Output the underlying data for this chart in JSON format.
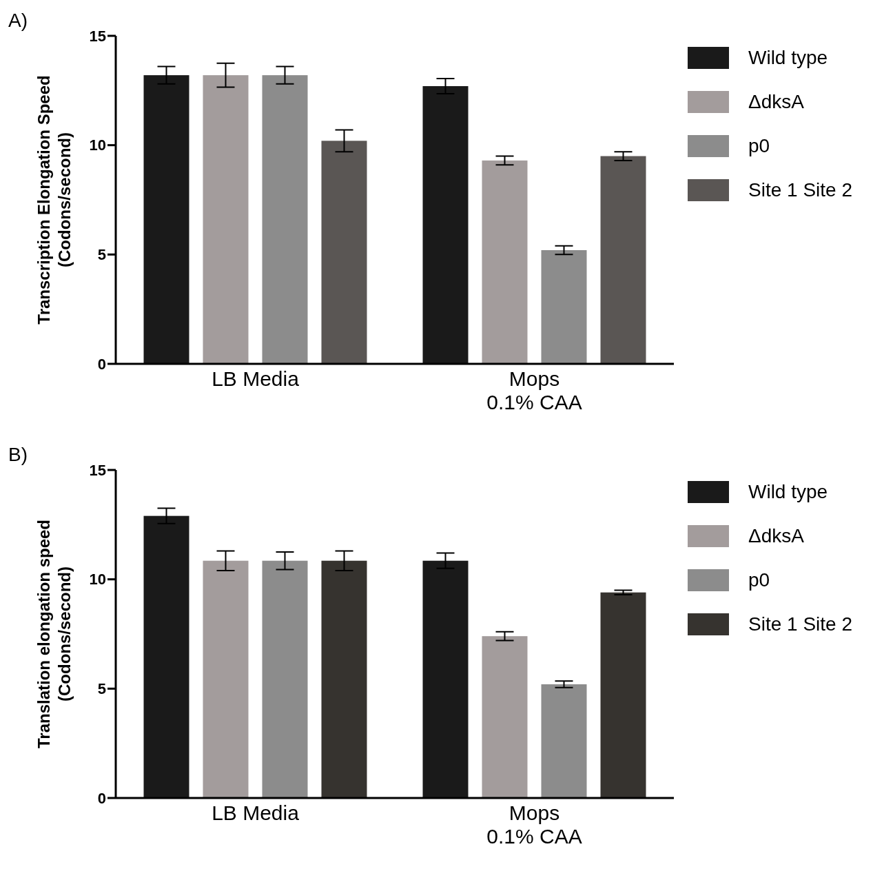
{
  "chart_data": [
    {
      "type": "bar",
      "annotations": [
        "A)"
      ],
      "ylabel": "Transcription Elongation Speed\n(Codons/second)",
      "categories": [
        "LB Media",
        "Mops\n0.1% CAA"
      ],
      "ylim": [
        0,
        15
      ],
      "yticks": [
        0,
        5,
        10,
        15
      ],
      "legend": "right",
      "series": [
        {
          "name": "Wild type",
          "color": "#1a1a1a",
          "values": [
            13.2,
            12.7
          ],
          "errors": [
            0.4,
            0.35
          ]
        },
        {
          "name": "ΔdksA",
          "color": "#a39c9c",
          "values": [
            13.2,
            9.3
          ],
          "errors": [
            0.55,
            0.2
          ]
        },
        {
          "name": "p0",
          "color": "#8c8c8c",
          "values": [
            13.2,
            5.2
          ],
          "errors": [
            0.4,
            0.2
          ]
        },
        {
          "name": "Site 1 Site 2",
          "color": "#5a5654",
          "values": [
            10.2,
            9.5
          ],
          "errors": [
            0.5,
            0.2
          ]
        }
      ]
    },
    {
      "type": "bar",
      "annotations": [
        "B)"
      ],
      "ylabel": "Translation elongation speed\n(Codons/second)",
      "categories": [
        "LB Media",
        "Mops\n0.1% CAA"
      ],
      "ylim": [
        0,
        15
      ],
      "yticks": [
        0,
        5,
        10,
        15
      ],
      "legend": "right",
      "series": [
        {
          "name": "Wild type",
          "color": "#1a1a1a",
          "values": [
            12.9,
            10.85
          ],
          "errors": [
            0.35,
            0.35
          ]
        },
        {
          "name": "ΔdksA",
          "color": "#a39c9c",
          "values": [
            10.85,
            7.4
          ],
          "errors": [
            0.45,
            0.2
          ]
        },
        {
          "name": "p0",
          "color": "#8c8c8c",
          "values": [
            10.85,
            5.2
          ],
          "errors": [
            0.4,
            0.15
          ]
        },
        {
          "name": "Site 1 Site 2",
          "color": "#36332f",
          "values": [
            10.85,
            9.4
          ],
          "errors": [
            0.45,
            0.1
          ]
        }
      ]
    }
  ]
}
